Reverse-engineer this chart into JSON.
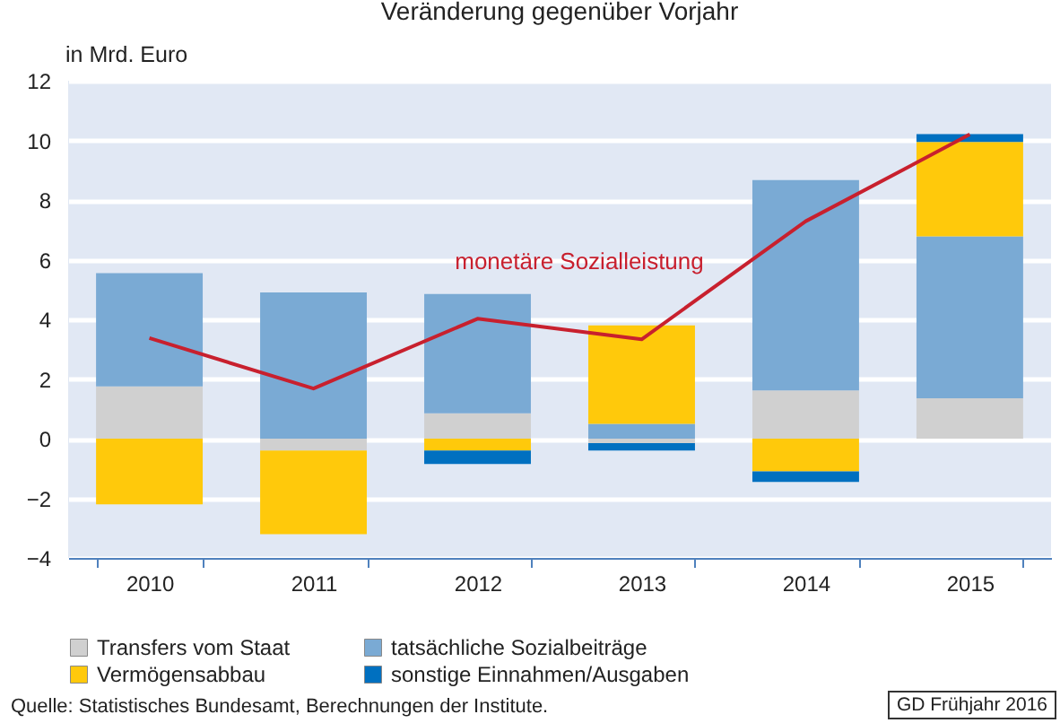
{
  "chart_data": {
    "type": "bar",
    "stacked": true,
    "title": "Veränderung gegenüber Vorjahr",
    "ylabel": "in Mrd. Euro",
    "categories": [
      "2010",
      "2011",
      "2012",
      "2013",
      "2014",
      "2015"
    ],
    "series": [
      {
        "name": "Transfers vom Staat",
        "color": "#d0d0d0",
        "values": [
          1.75,
          -0.4,
          0.85,
          -0.15,
          1.62,
          1.35
        ]
      },
      {
        "name": "tatsächliche Sozialbeiträge",
        "color": "#7aaad4",
        "values": [
          3.8,
          4.9,
          4.0,
          0.5,
          7.05,
          5.43
        ]
      },
      {
        "name": "Vermögensabbau",
        "color": "#ffc90b",
        "values": [
          -2.2,
          -2.8,
          -0.4,
          3.3,
          -1.1,
          3.17
        ]
      },
      {
        "name": "sonstige Einnahmen/Ausgaben",
        "color": "#0070c0",
        "values": [
          0,
          0,
          -0.45,
          -0.25,
          -0.35,
          0.26
        ]
      },
      {
        "name": "monetäre Sozialleistung",
        "type": "line",
        "color": "#c8202e",
        "values": [
          3.37,
          1.68,
          4.02,
          3.33,
          7.29,
          10.2
        ]
      }
    ],
    "ylim": [
      -4,
      12
    ],
    "yticks": [
      -4,
      -2,
      0,
      2,
      4,
      6,
      8,
      10,
      12
    ],
    "grid": "y",
    "legend": "bottom",
    "annotations": [
      "Quelle: Statistisches Bundesamt, Berechnungen der Institute.",
      "GD Frühjahr 2016"
    ]
  }
}
